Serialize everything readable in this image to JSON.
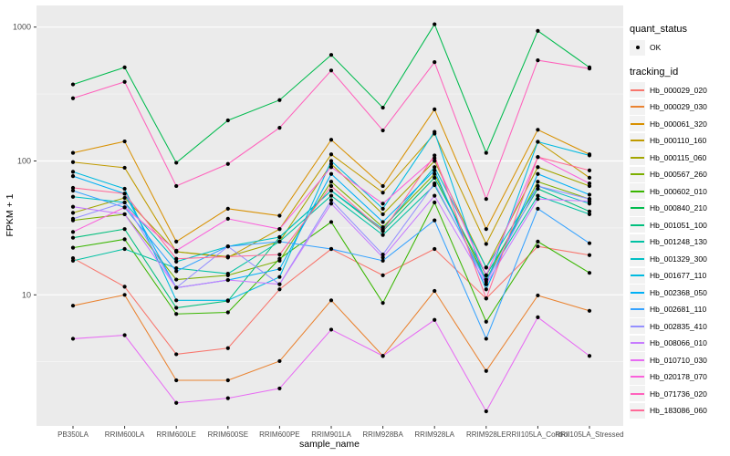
{
  "legend": {
    "quant_status_title": "quant_status",
    "quant_status_items": [
      "OK"
    ],
    "tracking_id_title": "tracking_id"
  },
  "colors": {
    "panel_background": "#EBEBEB",
    "gridline": "#FFFFFF",
    "tick_text": "#4D4D4D",
    "point": "#000000",
    "legend_key_background": "#F2F2F2"
  },
  "chart_data": {
    "type": "line",
    "title": "",
    "xlabel": "sample_name",
    "ylabel": "FPKM + 1",
    "y_scale": "log10",
    "ylim": [
      1.05,
      1450
    ],
    "y_ticks": [
      10,
      100,
      1000
    ],
    "y_minor_ticks": [
      3.162,
      31.62,
      316.2
    ],
    "grid": true,
    "legend_position": "right",
    "point_marker": "filled-circle",
    "categories": [
      "PB350LA",
      "RRIM600LA",
      "RRIM600LE",
      "RRIM600SE",
      "RRIM600PE",
      "RRIM901LA",
      "RRIM928BA",
      "RRIM928LA",
      "RRIM928LE",
      "RRII105LA_Control",
      "RRII105LA_Stressed"
    ],
    "series": [
      {
        "name": "Hb_000029_020",
        "color": "#F8766D",
        "values": [
          18.8,
          11.5,
          3.6,
          4.0,
          11.0,
          22.0,
          14.0,
          22.0,
          9.4,
          23.0,
          19.8
        ]
      },
      {
        "name": "Hb_000029_030",
        "color": "#EA8331",
        "values": [
          8.3,
          10.0,
          2.3,
          2.3,
          3.2,
          9.1,
          3.5,
          10.7,
          2.7,
          9.9,
          7.6
        ]
      },
      {
        "name": "Hb_000061_320",
        "color": "#D89000",
        "values": [
          115,
          140,
          25,
          44,
          39,
          144,
          65,
          243,
          31,
          171,
          112
        ]
      },
      {
        "name": "Hb_000110_160",
        "color": "#C09B00",
        "values": [
          98,
          89,
          21,
          19,
          31,
          112,
          58,
          160,
          24,
          139,
          75
        ]
      },
      {
        "name": "Hb_000115_060",
        "color": "#A3A500",
        "values": [
          41,
          53,
          21,
          19.3,
          25,
          95,
          40,
          100,
          16,
          90,
          65
        ]
      },
      {
        "name": "Hb_000567_260",
        "color": "#7CAE00",
        "values": [
          36,
          40,
          13,
          14,
          18,
          70,
          32,
          80,
          13,
          70,
          52
        ]
      },
      {
        "name": "Hb_000602_010",
        "color": "#39B600",
        "values": [
          22.5,
          26,
          7.2,
          7.4,
          18.6,
          35,
          8.7,
          49,
          6.3,
          25,
          14.6
        ]
      },
      {
        "name": "Hb_000840_210",
        "color": "#00BB4E",
        "values": [
          373,
          500,
          97,
          201,
          285,
          620,
          250,
          1050,
          115,
          937,
          500
        ]
      },
      {
        "name": "Hb_001051_100",
        "color": "#00BF7D",
        "values": [
          26.7,
          31,
          8.0,
          9.0,
          27,
          60,
          30,
          75,
          14,
          62,
          42
        ]
      },
      {
        "name": "Hb_001248_130",
        "color": "#00C1A3",
        "values": [
          18,
          22,
          15.8,
          14.4,
          25,
          55,
          28,
          66,
          13,
          55,
          40
        ]
      },
      {
        "name": "Hb_001329_300",
        "color": "#00BFC4",
        "values": [
          54,
          49,
          17.7,
          23,
          27,
          60,
          31,
          90,
          16,
          65,
          48
        ]
      },
      {
        "name": "Hb_001677_110",
        "color": "#00BAE0",
        "values": [
          83,
          62,
          9.1,
          9.1,
          13.6,
          100,
          44,
          165,
          12,
          139,
          110
        ]
      },
      {
        "name": "Hb_002368_050",
        "color": "#00B0F6",
        "values": [
          77,
          57,
          11.3,
          12.9,
          15.6,
          80,
          35,
          85,
          11,
          80,
          56
        ]
      },
      {
        "name": "Hb_002681_110",
        "color": "#35A2FF",
        "values": [
          60,
          45,
          15,
          23,
          25,
          22,
          18,
          36,
          4.7,
          44,
          24.3
        ]
      },
      {
        "name": "Hb_002835_410",
        "color": "#9590FF",
        "values": [
          37,
          49,
          11.3,
          23,
          12,
          51,
          20,
          68,
          12.5,
          65,
          52
        ]
      },
      {
        "name": "Hb_008066_010",
        "color": "#C77CFF",
        "values": [
          45.5,
          40,
          11.3,
          12.9,
          12,
          48,
          19,
          55,
          12,
          52,
          50
        ]
      },
      {
        "name": "Hb_010710_030",
        "color": "#E76BF3",
        "values": [
          4.7,
          5.0,
          1.56,
          1.69,
          2.0,
          5.5,
          3.5,
          6.5,
          1.35,
          6.8,
          3.5
        ]
      },
      {
        "name": "Hb_020178_070",
        "color": "#FA62DB",
        "values": [
          29.5,
          45,
          21.4,
          37,
          31,
          90,
          48,
          105,
          14,
          107,
          68
        ]
      },
      {
        "name": "Hb_071736_020",
        "color": "#FF62BC",
        "values": [
          294,
          390,
          65,
          95,
          177,
          474,
          169,
          547,
          52,
          565,
          490
        ]
      },
      {
        "name": "Hb_183086_060",
        "color": "#FF6A98",
        "values": [
          63,
          57,
          18.6,
          19.3,
          20,
          65,
          30,
          110,
          9.4,
          107,
          85
        ]
      }
    ]
  }
}
